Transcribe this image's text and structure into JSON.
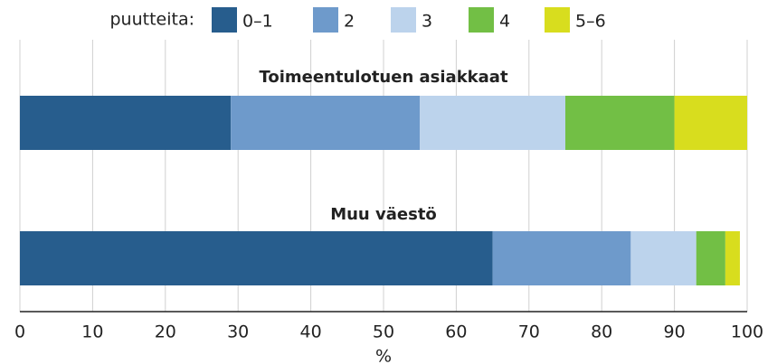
{
  "chart_data": {
    "type": "stacked-barh",
    "legend_title": "puutteita:",
    "categories": [
      "Toimeentulotuen asiakkaat",
      "Muu väestö"
    ],
    "series": [
      {
        "name": "0–1",
        "color": "#275d8d",
        "values": [
          29,
          65
        ]
      },
      {
        "name": "2",
        "color": "#6e9acb",
        "values": [
          26,
          19
        ]
      },
      {
        "name": "3",
        "color": "#bcd3ec",
        "values": [
          20,
          9
        ]
      },
      {
        "name": "4",
        "color": "#72bf45",
        "values": [
          15,
          4
        ]
      },
      {
        "name": "5–6",
        "color": "#d8dd1e",
        "values": [
          10,
          2
        ]
      }
    ],
    "xlabel": "%",
    "xlim": [
      0,
      100
    ],
    "xticks": [
      0,
      10,
      20,
      30,
      40,
      50,
      60,
      70,
      80,
      90,
      100
    ],
    "grid": true
  }
}
